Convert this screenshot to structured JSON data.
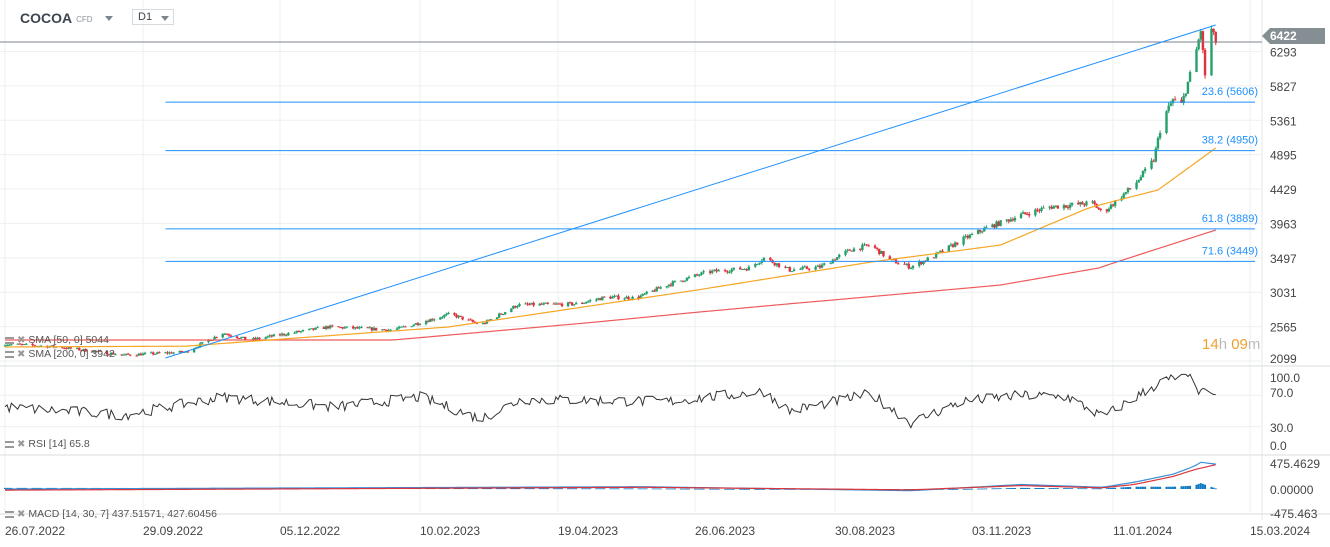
{
  "header": {
    "symbol": "COCOA",
    "instrument_type": "CFD",
    "timeframe": "D1"
  },
  "price_label": "6422",
  "countdown": {
    "hours": "14",
    "h": "h",
    "minutes": "09",
    "m": "m"
  },
  "legends": {
    "sma50": "SMA [50, 0] 5044",
    "sma200": "SMA [200, 0] 3942",
    "rsi": "RSI [14] 65.8",
    "macd": "MACD [14, 30, 7] 437.51571, 427.60456"
  },
  "colors": {
    "up": "#26a06a",
    "down": "#e0323c",
    "sma50": "#f5a623",
    "sma200": "#ef5a5a",
    "fib": "#1e90ff",
    "macd": "#3b8fd6",
    "signal": "#d9353c",
    "hist": "#0a78c2",
    "rsi": "#333333"
  },
  "chart_data": [
    {
      "type": "candlestick",
      "title": "COCOA",
      "ylim": [
        2099,
        6600
      ],
      "yticks": [
        6293,
        5827,
        5361,
        4895,
        4429,
        3963,
        3497,
        3031,
        2565,
        2099
      ],
      "xticks": [
        "26.07.2022",
        "29.09.2022",
        "05.12.2022",
        "10.02.2023",
        "19.04.2023",
        "26.06.2023",
        "30.08.2023",
        "03.11.2023",
        "11.01.2024",
        "15.03.2024"
      ],
      "last_price": 6422,
      "close_path": [
        [
          "2022-07-26",
          2330
        ],
        [
          "2022-08-20",
          2290
        ],
        [
          "2022-09-20",
          2180
        ],
        [
          "2022-10-20",
          2221
        ],
        [
          "2022-11-07",
          2478
        ],
        [
          "2022-11-20",
          2383
        ],
        [
          "2022-12-28",
          2560
        ],
        [
          "2023-01-28",
          2519
        ],
        [
          "2023-02-25",
          2736
        ],
        [
          "2023-03-12",
          2587
        ],
        [
          "2023-03-30",
          2858
        ],
        [
          "2023-04-28",
          2871
        ],
        [
          "2023-05-13",
          2966
        ],
        [
          "2023-05-28",
          2953
        ],
        [
          "2023-06-12",
          3129
        ],
        [
          "2023-07-02",
          3305
        ],
        [
          "2023-07-21",
          3359
        ],
        [
          "2023-07-28",
          3495
        ],
        [
          "2023-08-09",
          3332
        ],
        [
          "2023-08-23",
          3373
        ],
        [
          "2023-09-06",
          3603
        ],
        [
          "2023-09-16",
          3671
        ],
        [
          "2023-09-25",
          3468
        ],
        [
          "2023-10-05",
          3373
        ],
        [
          "2023-10-17",
          3535
        ],
        [
          "2023-10-29",
          3739
        ],
        [
          "2023-11-10",
          3901
        ],
        [
          "2023-11-27",
          4077
        ],
        [
          "2023-12-11",
          4186
        ],
        [
          "2024-01-01",
          4240
        ],
        [
          "2024-01-06",
          4104
        ],
        [
          "2024-01-21",
          4484
        ],
        [
          "2024-01-30",
          4823
        ],
        [
          "2024-02-03",
          5365
        ],
        [
          "2024-02-08",
          5636
        ],
        [
          "2024-02-12",
          5570
        ],
        [
          "2024-02-18",
          6177
        ],
        [
          "2024-02-21",
          6584
        ],
        [
          "2024-02-23",
          5974
        ],
        [
          "2024-02-26",
          6584
        ],
        [
          "2024-02-28",
          6422
        ]
      ],
      "sma50": {
        "name": "SMA [50, 0]",
        "value": 5044,
        "path": [
          [
            "2022-07-26",
            2289
          ],
          [
            "2022-10-20",
            2300
          ],
          [
            "2023-02-24",
            2560
          ],
          [
            "2023-06-27",
            3061
          ],
          [
            "2023-09-16",
            3440
          ],
          [
            "2023-11-17",
            3671
          ],
          [
            "2023-12-30",
            4172
          ],
          [
            "2024-02-01",
            4416
          ],
          [
            "2024-02-28",
            4985
          ]
        ]
      },
      "sma200": {
        "name": "SMA [200, 0]",
        "value": 3942,
        "path": [
          [
            "2022-07-26",
            2384
          ],
          [
            "2023-01-28",
            2384
          ],
          [
            "2023-05-08",
            2627
          ],
          [
            "2023-08-13",
            2885
          ],
          [
            "2023-11-17",
            3129
          ],
          [
            "2024-01-04",
            3359
          ],
          [
            "2024-02-28",
            3874
          ]
        ]
      },
      "fibonacci": {
        "levels": [
          {
            "label": "23.6 (5606)",
            "pct": 23.6,
            "price": 5606
          },
          {
            "label": "38.2 (4950)",
            "pct": 38.2,
            "price": 4950
          },
          {
            "label": "61.8 (3889)",
            "pct": 61.8,
            "price": 3889
          },
          {
            "label": "71.6 (3449)",
            "pct": 71.6,
            "price": 3449
          }
        ],
        "trend_from": [
          "2022-10-10",
          2140
        ],
        "trend_to": [
          "2024-02-28",
          6652
        ],
        "start": "2022-10-10"
      }
    },
    {
      "type": "line",
      "title": "RSI [14]",
      "value": 65.8,
      "ylim": [
        0,
        100
      ],
      "yticks": [
        "100.0",
        "70.0",
        "30.0",
        "0.0"
      ],
      "path": [
        [
          "2022-07-26",
          55
        ],
        [
          "2022-09-20",
          45
        ],
        [
          "2022-11-07",
          68
        ],
        [
          "2023-01-01",
          55
        ],
        [
          "2023-02-10",
          68
        ],
        [
          "2023-03-12",
          40
        ],
        [
          "2023-04-01",
          65
        ],
        [
          "2023-06-12",
          62
        ],
        [
          "2023-07-28",
          75
        ],
        [
          "2023-08-09",
          50
        ],
        [
          "2023-09-16",
          72
        ],
        [
          "2023-10-05",
          35
        ],
        [
          "2023-10-29",
          62
        ],
        [
          "2023-11-27",
          70
        ],
        [
          "2023-12-20",
          68
        ],
        [
          "2024-01-06",
          42
        ],
        [
          "2024-02-03",
          88
        ],
        [
          "2024-02-12",
          94
        ],
        [
          "2024-02-18",
          92
        ],
        [
          "2024-02-21",
          70
        ],
        [
          "2024-02-23",
          82
        ],
        [
          "2024-02-26",
          66
        ],
        [
          "2024-02-28",
          65.8
        ]
      ]
    },
    {
      "type": "line",
      "title": "MACD [14, 30, 7]",
      "values": [
        437.51571,
        427.60456
      ],
      "ylim": [
        -475.463,
        475.4629
      ],
      "yticks": [
        "475.4629",
        "0.00000",
        "-475.463"
      ],
      "macd": [
        [
          "2022-07-26",
          0
        ],
        [
          "2023-06-01",
          40
        ],
        [
          "2023-10-05",
          -30
        ],
        [
          "2023-11-27",
          80
        ],
        [
          "2024-01-06",
          30
        ],
        [
          "2024-01-21",
          120
        ],
        [
          "2024-02-08",
          260
        ],
        [
          "2024-02-18",
          400
        ],
        [
          "2024-02-21",
          470
        ],
        [
          "2024-02-28",
          437.5
        ]
      ],
      "signal": [
        [
          "2022-07-26",
          -20
        ],
        [
          "2023-06-01",
          30
        ],
        [
          "2023-10-05",
          -15
        ],
        [
          "2023-11-27",
          60
        ],
        [
          "2024-01-06",
          20
        ],
        [
          "2024-01-21",
          80
        ],
        [
          "2024-02-08",
          220
        ],
        [
          "2024-02-18",
          340
        ],
        [
          "2024-02-28",
          427.6
        ]
      ]
    }
  ]
}
